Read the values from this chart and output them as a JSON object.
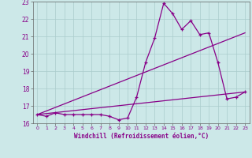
{
  "xlabel": "Windchill (Refroidissement éolien,°C)",
  "bg_color": "#cce8e8",
  "grid_color": "#aacccc",
  "line_color": "#880088",
  "xlim": [
    -0.5,
    23.5
  ],
  "ylim": [
    16,
    23
  ],
  "xticks": [
    0,
    1,
    2,
    3,
    4,
    5,
    6,
    7,
    8,
    9,
    10,
    11,
    12,
    13,
    14,
    15,
    16,
    17,
    18,
    19,
    20,
    21,
    22,
    23
  ],
  "yticks": [
    16,
    17,
    18,
    19,
    20,
    21,
    22,
    23
  ],
  "series": {
    "line1": {
      "x": [
        0,
        1,
        2,
        3,
        4,
        5,
        6,
        7,
        8,
        9,
        10,
        11,
        12,
        13,
        14,
        15,
        16,
        17,
        18,
        19,
        20,
        21,
        22,
        23
      ],
      "y": [
        16.5,
        16.4,
        16.6,
        16.5,
        16.5,
        16.5,
        16.5,
        16.5,
        16.4,
        16.2,
        16.3,
        17.5,
        19.5,
        20.9,
        22.9,
        22.3,
        21.4,
        21.9,
        21.1,
        21.2,
        19.5,
        17.4,
        17.5,
        17.8
      ]
    },
    "line2": {
      "x": [
        0,
        23
      ],
      "y": [
        16.5,
        17.8
      ]
    },
    "line3": {
      "x": [
        0,
        23
      ],
      "y": [
        16.5,
        21.2
      ]
    }
  }
}
